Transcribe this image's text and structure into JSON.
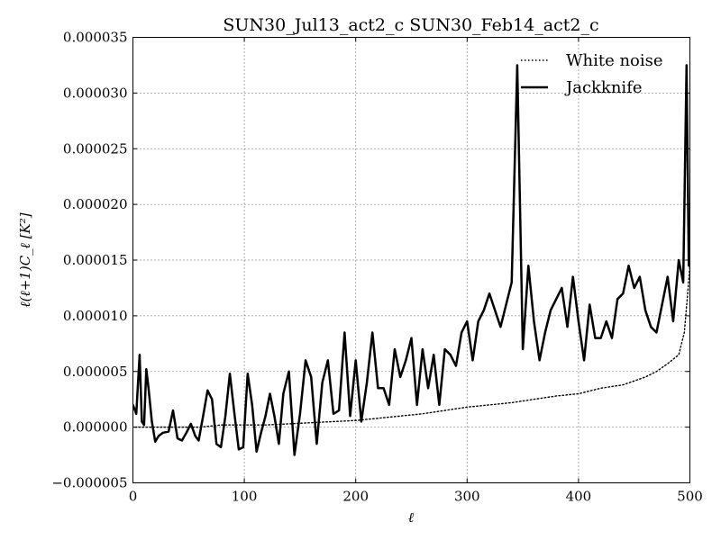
{
  "chart_data": {
    "type": "line",
    "title": "SUN30_Jul13_act2_c SUN30_Feb14_act2_c",
    "xlabel": "ℓ",
    "ylabel": "ℓ(ℓ+1)C_ℓ [K²]",
    "xlim": [
      0,
      500
    ],
    "ylim": [
      -5e-06,
      3.5e-05
    ],
    "grid": true,
    "legend_position": "top-right",
    "x_ticks": [
      "0",
      "100",
      "200",
      "300",
      "400",
      "500"
    ],
    "y_ticks": [
      "−0.000005",
      "0.000000",
      "0.000005",
      "0.000010",
      "0.000015",
      "0.000020",
      "0.000025",
      "0.000030",
      "0.000035"
    ],
    "series": [
      {
        "name": "White noise",
        "style": "dotted",
        "color": "#000000",
        "x": [
          2,
          20,
          40,
          60,
          80,
          100,
          120,
          140,
          160,
          180,
          200,
          220,
          240,
          260,
          280,
          300,
          320,
          340,
          360,
          380,
          400,
          420,
          440,
          460,
          470,
          480,
          490,
          495,
          498,
          500
        ],
        "y": [
          0.0,
          0.0,
          0.0,
          0.0,
          2e-07,
          2e-07,
          2e-07,
          3e-07,
          4e-07,
          5e-07,
          6e-07,
          8e-07,
          1e-06,
          1.2e-06,
          1.5e-06,
          1.8e-06,
          2e-06,
          2.2e-06,
          2.5e-06,
          2.8e-06,
          3e-06,
          3.5e-06,
          3.8e-06,
          4.5e-06,
          5e-06,
          5.7e-06,
          6.5e-06,
          8.5e-06,
          1.2e-05,
          1.45e-05
        ]
      },
      {
        "name": "Jackknife",
        "style": "solid",
        "color": "#000000",
        "x": [
          0,
          3,
          6,
          8,
          10,
          12,
          14,
          17,
          20,
          23,
          27,
          32,
          36,
          40,
          44,
          48,
          52,
          56,
          59,
          63,
          67,
          71,
          75,
          79,
          83,
          87,
          91,
          95,
          99,
          103,
          107,
          111,
          115,
          119,
          123,
          127,
          131,
          135,
          140,
          145,
          150,
          155,
          160,
          165,
          170,
          175,
          180,
          185,
          190,
          195,
          200,
          205,
          210,
          215,
          220,
          225,
          230,
          235,
          240,
          245,
          250,
          255,
          260,
          265,
          270,
          275,
          280,
          285,
          290,
          295,
          300,
          305,
          310,
          315,
          320,
          325,
          330,
          335,
          340,
          345,
          350,
          355,
          360,
          365,
          370,
          375,
          380,
          385,
          390,
          395,
          400,
          405,
          410,
          415,
          420,
          425,
          430,
          435,
          440,
          445,
          450,
          455,
          460,
          465,
          470,
          475,
          480,
          485,
          490,
          494,
          497,
          499,
          500
        ],
        "y": [
          2e-06,
          1.2e-06,
          6.5e-06,
          5e-07,
          2e-07,
          5.2e-06,
          3.5e-06,
          5e-07,
          -1.3e-06,
          -8e-07,
          -5e-07,
          -4e-07,
          1.5e-06,
          -1e-06,
          -1.2e-06,
          -5e-07,
          3e-07,
          -8e-07,
          -1.2e-06,
          1e-06,
          3.3e-06,
          2.5e-06,
          -1.5e-06,
          -1.8e-06,
          1e-06,
          4.8e-06,
          1.3e-06,
          -2e-06,
          -1.8e-06,
          4.8e-06,
          2e-06,
          -2.2e-06,
          -5e-07,
          1e-06,
          3e-06,
          1e-06,
          -1.5e-06,
          3e-06,
          5e-06,
          -2.5e-06,
          1.2e-06,
          6e-06,
          4.5e-06,
          -1.5e-06,
          4e-06,
          6e-06,
          1.2e-06,
          1.5e-06,
          8.5e-06,
          1e-06,
          6e-06,
          5e-07,
          4e-06,
          8.5e-06,
          3.5e-06,
          3.5e-06,
          2e-06,
          7e-06,
          4.5e-06,
          6e-06,
          8e-06,
          2e-06,
          7e-06,
          3.5e-06,
          6.5e-06,
          2e-06,
          7e-06,
          6.5e-06,
          5.5e-06,
          8.5e-06,
          9.5e-06,
          6e-06,
          9.5e-06,
          1.05e-05,
          1.2e-05,
          1.05e-05,
          9e-06,
          1.1e-05,
          1.3e-05,
          3.25e-05,
          7e-06,
          1.45e-05,
          9.5e-06,
          6e-06,
          8.5e-06,
          1.05e-05,
          1.15e-05,
          1.25e-05,
          9e-06,
          1.35e-05,
          9.5e-06,
          6e-06,
          1.1e-05,
          8e-06,
          8e-06,
          9.5e-06,
          8e-06,
          1.15e-05,
          1.2e-05,
          1.45e-05,
          1.25e-05,
          1.35e-05,
          1.05e-05,
          9e-06,
          8.5e-06,
          1.1e-05,
          1.35e-05,
          9.5e-06,
          1.5e-05,
          1.3e-05,
          3.25e-05,
          1.45e-05,
          1.45e-05
        ]
      }
    ]
  }
}
